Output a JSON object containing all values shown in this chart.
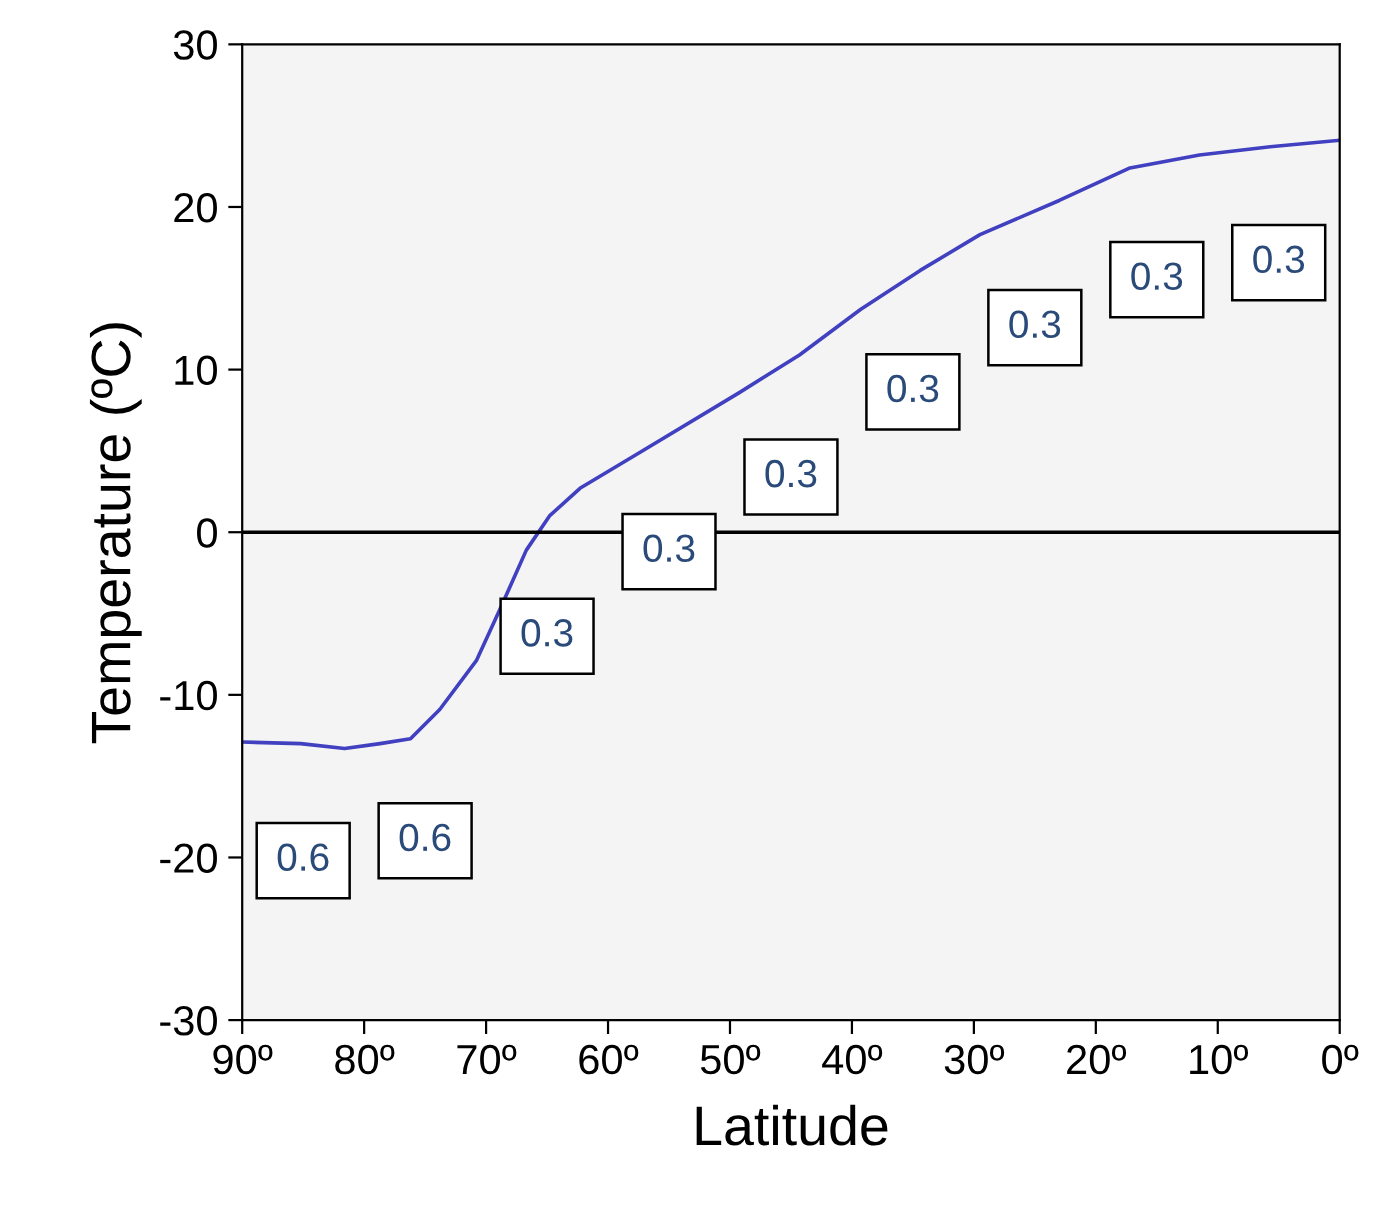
{
  "chart_data": {
    "type": "line",
    "xlabel": "Latitude",
    "ylabel": "Temperature (ºC)",
    "xlim": [
      90,
      0
    ],
    "ylim": [
      -30,
      30
    ],
    "xticks": [
      {
        "value": 90,
        "label": "90º"
      },
      {
        "value": 80,
        "label": "80º"
      },
      {
        "value": 70,
        "label": "70º"
      },
      {
        "value": 60,
        "label": "60º"
      },
      {
        "value": 50,
        "label": "50º"
      },
      {
        "value": 40,
        "label": "40º"
      },
      {
        "value": 30,
        "label": "30º"
      },
      {
        "value": 20,
        "label": "20º"
      },
      {
        "value": 10,
        "label": "10º"
      },
      {
        "value": 0,
        "label": "0º"
      }
    ],
    "yticks": [
      -30,
      -20,
      -10,
      0,
      10,
      20,
      30
    ],
    "grid": false,
    "legend": false,
    "marker": "none",
    "line_style": "solid",
    "series": [
      {
        "color": "#4040c0",
        "x": [
          90,
          85.2,
          81.6,
          78.7,
          76.2,
          73.8,
          70.8,
          68.9,
          66.7,
          64.8,
          62.3,
          57.4,
          49.2,
          44.3,
          39.3,
          34.4,
          29.5,
          23,
          17.2,
          11.5,
          5.7,
          0
        ],
        "values": [
          -12.9,
          -13,
          -13.3,
          -13,
          -12.7,
          -10.9,
          -7.9,
          -4.8,
          -1.1,
          1,
          2.7,
          4.9,
          8.6,
          10.9,
          13.7,
          16.1,
          18.3,
          20.4,
          22.4,
          23.2,
          23.7,
          24.1
        ]
      }
    ],
    "ref_lines": [
      {
        "axis": "y",
        "value": 0,
        "color": "#000000",
        "line_style": "solid"
      }
    ],
    "annotations": [
      "0.6",
      "0.6",
      "0.3",
      "0.3",
      "0.3",
      "0.3",
      "0.3",
      "0.3",
      "0.3"
    ]
  }
}
